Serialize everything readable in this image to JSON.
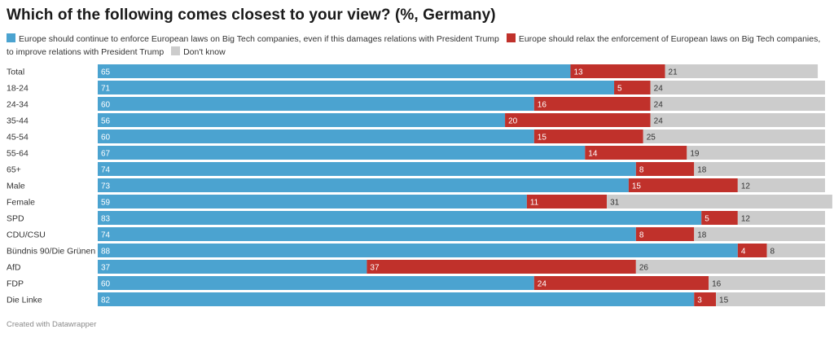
{
  "chart_data": {
    "type": "bar",
    "stacked": true,
    "orientation": "horizontal",
    "title": "Which of the following comes closest to your view? (%, Germany)",
    "categories": [
      "Total",
      "18-24",
      "24-34",
      "35-44",
      "45-54",
      "55-64",
      "65+",
      "Male",
      "Female",
      "SPD",
      "CDU/CSU",
      "Bündnis 90/Die Grünen",
      "AfD",
      "FDP",
      "Die Linke"
    ],
    "series": [
      {
        "name": "Europe should continue to enforce European laws on Big Tech companies, even if this damages relations with President Trump",
        "color": "#4ba3d0",
        "label_color": "#ffffff",
        "values": [
          65,
          71,
          60,
          56,
          60,
          67,
          74,
          73,
          59,
          83,
          74,
          88,
          37,
          60,
          82
        ]
      },
      {
        "name": "Europe should relax the enforcement of European laws on Big Tech companies, to improve relations with President Trump",
        "color": "#c0312b",
        "label_color": "#ffffff",
        "values": [
          13,
          5,
          16,
          20,
          15,
          14,
          8,
          15,
          11,
          5,
          8,
          4,
          37,
          24,
          3
        ]
      },
      {
        "name": "Don't know",
        "color": "#cccccc",
        "label_color": "#333333",
        "values": [
          21,
          24,
          24,
          24,
          25,
          19,
          18,
          12,
          31,
          12,
          18,
          8,
          26,
          16,
          15
        ]
      }
    ],
    "legend_position": "top",
    "grid": false
  },
  "footer": "Created with Datawrapper"
}
